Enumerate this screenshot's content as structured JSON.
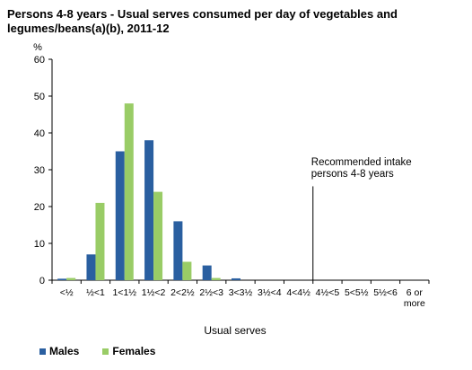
{
  "chart_data": {
    "type": "bar",
    "title": "Persons 4-8 years - Usual serves consumed per day of vegetables and legumes/beans(a)(b), 2011-12",
    "xlabel": "Usual serves",
    "ylabel": "%",
    "ylim": [
      0,
      60
    ],
    "yticks": [
      0,
      10,
      20,
      30,
      40,
      50,
      60
    ],
    "grid": false,
    "legend_position": "bottom-left",
    "categories": [
      "<½",
      "½<1",
      "1<1½",
      "1½<2",
      "2<2½",
      "2½<3",
      "3<3½",
      "3½<4",
      "4<4½",
      "4½<5",
      "5<5½",
      "5½<6",
      "6 or more"
    ],
    "category_labels": [
      [
        "<½"
      ],
      [
        "½<1"
      ],
      [
        "1<1½"
      ],
      [
        "1½<2"
      ],
      [
        "2<2½"
      ],
      [
        "2½<3"
      ],
      [
        "3<3½"
      ],
      [
        "3½<4"
      ],
      [
        "4<4½"
      ],
      [
        "4½<5"
      ],
      [
        "5<5½"
      ],
      [
        "5½<6"
      ],
      [
        "6 or",
        "more"
      ]
    ],
    "series": [
      {
        "name": "Males",
        "color": "#2a5fa0",
        "values": [
          0.4,
          7,
          35,
          38,
          16,
          4,
          0.5,
          0,
          0,
          0,
          0,
          0,
          0
        ]
      },
      {
        "name": "Females",
        "color": "#99cc66",
        "values": [
          0.6,
          21,
          48,
          24,
          5,
          0.6,
          0,
          0,
          0,
          0,
          0,
          0,
          0
        ]
      }
    ],
    "annotation": {
      "lines": [
        "Recommended intake",
        "persons 4-8 years"
      ],
      "at_category_boundary": 9,
      "line_top_value": 25.5
    }
  }
}
